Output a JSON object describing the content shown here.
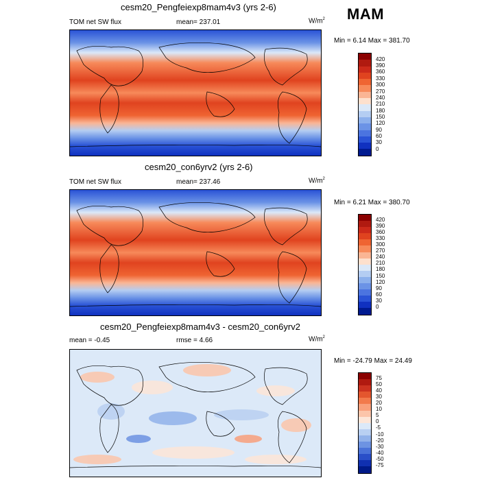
{
  "season": "MAM",
  "panels": [
    {
      "title": "cesm20_Pengfeiexp8mam4v3 (yrs 2-6)",
      "left_label": "TOM net SW flux",
      "center_label": "mean= 237.01",
      "unit_base": "W/m",
      "unit_sup": "2",
      "minmax": "Min =   6.14 Max = 381.70",
      "colorbar_labels": [
        "420",
        "390",
        "360",
        "330",
        "300",
        "270",
        "240",
        "210",
        "180",
        "150",
        "120",
        "90",
        "60",
        "30",
        "0"
      ],
      "colorbar_colors": [
        "#8b0000",
        "#b01a10",
        "#cc2a1a",
        "#e0431f",
        "#ef6432",
        "#f78a5a",
        "#fab594",
        "#fde0cd",
        "#dbe8f8",
        "#b4cdf2",
        "#8cb0ec",
        "#6b93e6",
        "#4b74e0",
        "#2a53d6",
        "#1031c0",
        "#001a90"
      ]
    },
    {
      "title": "cesm20_con6yrv2 (yrs 2-6)",
      "left_label": "TOM net SW flux",
      "center_label": "mean= 237.46",
      "unit_base": "W/m",
      "unit_sup": "2",
      "minmax": "Min =   6.21 Max = 380.70",
      "colorbar_labels": [
        "420",
        "390",
        "360",
        "330",
        "300",
        "270",
        "240",
        "210",
        "180",
        "150",
        "120",
        "90",
        "60",
        "30",
        "0"
      ],
      "colorbar_colors": [
        "#8b0000",
        "#b01a10",
        "#cc2a1a",
        "#e0431f",
        "#ef6432",
        "#f78a5a",
        "#fab594",
        "#fde0cd",
        "#dbe8f8",
        "#b4cdf2",
        "#8cb0ec",
        "#6b93e6",
        "#4b74e0",
        "#2a53d6",
        "#1031c0",
        "#001a90"
      ]
    },
    {
      "title": "cesm20_Pengfeiexp8mam4v3 - cesm20_con6yrv2",
      "left_label": "mean =  -0.45",
      "center_label": "rmse =   4.66",
      "unit_base": "W/m",
      "unit_sup": "2",
      "minmax": "Min = -24.79 Max =  24.49",
      "colorbar_labels": [
        "75",
        "50",
        "40",
        "30",
        "20",
        "10",
        "5",
        "0",
        "-5",
        "-10",
        "-20",
        "-30",
        "-40",
        "-50",
        "-75"
      ],
      "colorbar_colors": [
        "#8b0000",
        "#b01a10",
        "#cc3320",
        "#e4562e",
        "#f27a4c",
        "#f9a07c",
        "#fcc5aa",
        "#fde6d8",
        "#dce9f8",
        "#b9d0f2",
        "#92b2ea",
        "#6d93e2",
        "#4a72d8",
        "#2a4fc8",
        "#1030b0",
        "#001a88"
      ]
    }
  ]
}
